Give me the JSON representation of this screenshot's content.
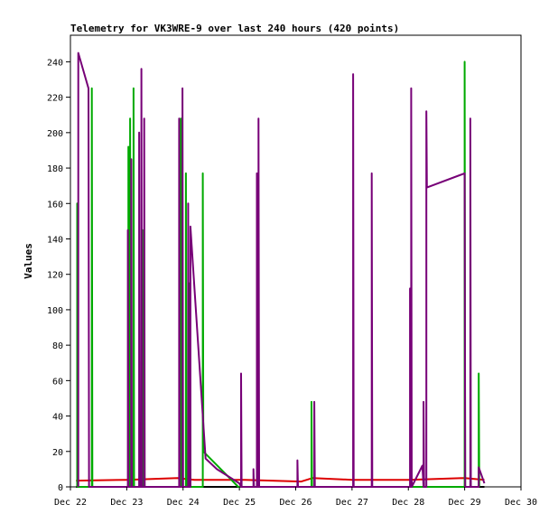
{
  "chart_data": {
    "type": "line",
    "title": "Telemetry for VK3WRE-9 over last 240 hours (420 points)",
    "xlabel": "",
    "ylabel": "Values",
    "x_ticks": [
      "Dec 22",
      "Dec 23",
      "Dec 24",
      "Dec 25",
      "Dec 26",
      "Dec 27",
      "Dec 28",
      "Dec 29",
      "Dec 30"
    ],
    "xlim": [
      0,
      8
    ],
    "ylim": [
      0,
      255
    ],
    "y_ticks": [
      0,
      20,
      40,
      60,
      80,
      100,
      120,
      140,
      160,
      180,
      200,
      220,
      240
    ],
    "grid": false,
    "legend": "none",
    "colors": {
      "red": "#dd0000",
      "green": "#00aa00",
      "purple": "#770077",
      "black": "#000000"
    },
    "series": [
      {
        "color": "red",
        "points": [
          [
            0.1,
            3.5
          ],
          [
            1.0,
            4
          ],
          [
            1.9,
            5
          ],
          [
            2.2,
            4
          ],
          [
            3.1,
            4
          ],
          [
            4.1,
            3
          ],
          [
            4.3,
            5
          ],
          [
            5.0,
            4
          ],
          [
            6.0,
            4
          ],
          [
            7.0,
            5
          ],
          [
            7.35,
            4
          ]
        ]
      },
      {
        "color": "black",
        "points": [
          [
            0.1,
            0
          ],
          [
            7.35,
            0
          ]
        ]
      },
      {
        "color": "green",
        "points": [
          [
            0.12,
            0
          ],
          [
            0.12,
            160
          ],
          [
            0.13,
            0
          ],
          [
            0.38,
            0
          ],
          [
            0.38,
            225
          ],
          [
            0.39,
            0
          ],
          [
            1.03,
            0
          ],
          [
            1.03,
            192
          ],
          [
            1.04,
            0
          ],
          [
            1.06,
            0
          ],
          [
            1.06,
            208
          ],
          [
            1.07,
            0
          ],
          [
            1.12,
            0
          ],
          [
            1.12,
            225
          ],
          [
            1.13,
            0
          ],
          [
            1.28,
            0
          ],
          [
            1.28,
            145
          ],
          [
            1.29,
            0
          ],
          [
            1.96,
            0
          ],
          [
            1.96,
            208
          ],
          [
            1.97,
            0
          ],
          [
            2.05,
            0
          ],
          [
            2.05,
            177
          ],
          [
            2.06,
            0
          ],
          [
            2.12,
            0
          ],
          [
            2.12,
            115
          ],
          [
            2.13,
            0
          ],
          [
            2.35,
            0
          ],
          [
            2.35,
            177
          ],
          [
            2.36,
            20
          ],
          [
            2.98,
            0
          ],
          [
            4.28,
            0
          ],
          [
            4.28,
            48
          ],
          [
            4.29,
            0
          ],
          [
            7.0,
            0
          ],
          [
            7.0,
            240
          ],
          [
            7.01,
            0
          ],
          [
            7.25,
            0
          ],
          [
            7.25,
            64
          ],
          [
            7.26,
            0
          ]
        ]
      },
      {
        "color": "purple",
        "points": [
          [
            0.14,
            0
          ],
          [
            0.14,
            245
          ],
          [
            0.32,
            225
          ],
          [
            0.33,
            0
          ],
          [
            1.02,
            0
          ],
          [
            1.02,
            145
          ],
          [
            1.03,
            0
          ],
          [
            1.08,
            0
          ],
          [
            1.08,
            185
          ],
          [
            1.09,
            0
          ],
          [
            1.22,
            0
          ],
          [
            1.22,
            200
          ],
          [
            1.23,
            0
          ],
          [
            1.26,
            0
          ],
          [
            1.26,
            236
          ],
          [
            1.27,
            0
          ],
          [
            1.31,
            0
          ],
          [
            1.31,
            208
          ],
          [
            1.32,
            0
          ],
          [
            1.93,
            0
          ],
          [
            1.93,
            208
          ],
          [
            1.94,
            0
          ],
          [
            1.99,
            0
          ],
          [
            1.99,
            225
          ],
          [
            2.0,
            0
          ],
          [
            2.09,
            0
          ],
          [
            2.09,
            160
          ],
          [
            2.1,
            0
          ],
          [
            2.13,
            0
          ],
          [
            2.13,
            147
          ],
          [
            2.4,
            16
          ],
          [
            2.6,
            10
          ],
          [
            3.0,
            2
          ],
          [
            3.03,
            0
          ],
          [
            3.03,
            64
          ],
          [
            3.04,
            0
          ],
          [
            3.25,
            0
          ],
          [
            3.25,
            10
          ],
          [
            3.26,
            0
          ],
          [
            3.31,
            0
          ],
          [
            3.31,
            177
          ],
          [
            3.32,
            0
          ],
          [
            3.34,
            0
          ],
          [
            3.34,
            208
          ],
          [
            3.35,
            0
          ],
          [
            3.9,
            0
          ],
          [
            4.03,
            0
          ],
          [
            4.03,
            15
          ],
          [
            4.04,
            0
          ],
          [
            4.33,
            0
          ],
          [
            4.33,
            48
          ],
          [
            4.34,
            0
          ],
          [
            5.02,
            0
          ],
          [
            5.02,
            233
          ],
          [
            5.03,
            0
          ],
          [
            5.35,
            0
          ],
          [
            5.35,
            177
          ],
          [
            5.36,
            0
          ],
          [
            6.03,
            0
          ],
          [
            6.03,
            112
          ],
          [
            6.04,
            0
          ],
          [
            6.05,
            0
          ],
          [
            6.05,
            225
          ],
          [
            6.06,
            0
          ],
          [
            6.25,
            12
          ],
          [
            6.27,
            0
          ],
          [
            6.27,
            48
          ],
          [
            6.28,
            0
          ],
          [
            6.32,
            0
          ],
          [
            6.32,
            212
          ],
          [
            6.33,
            169
          ],
          [
            7.0,
            177
          ],
          [
            7.01,
            0
          ],
          [
            7.1,
            0
          ],
          [
            7.1,
            208
          ],
          [
            7.11,
            0
          ],
          [
            7.25,
            0
          ],
          [
            7.25,
            11
          ],
          [
            7.35,
            2
          ]
        ]
      }
    ]
  }
}
